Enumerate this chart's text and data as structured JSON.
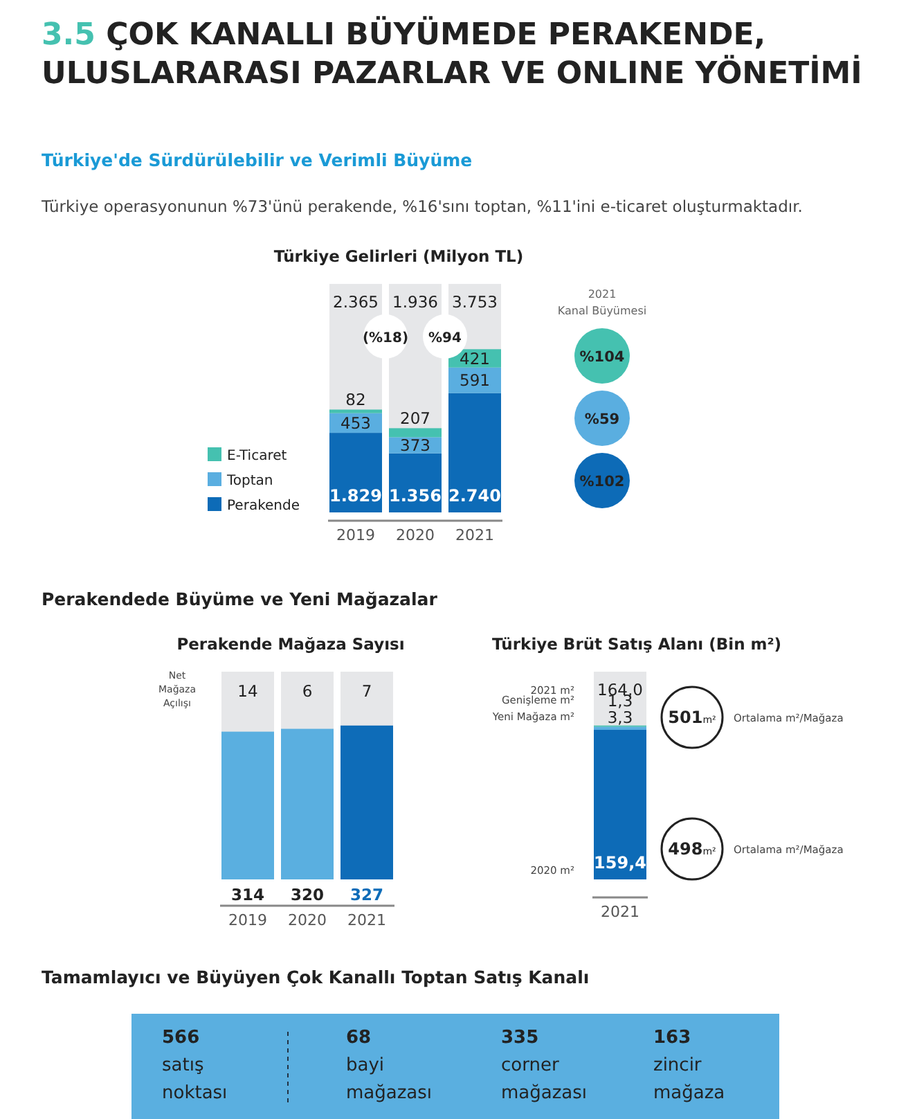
{
  "chart_data": [
    {
      "type": "bar",
      "stacked": true,
      "title": "Türkiye Gelirleri (Milyon TL)",
      "categories": [
        "2019",
        "2020",
        "2021"
      ],
      "series": [
        {
          "name": "Perakende",
          "color": "#0d6bb7",
          "values": [
            1829,
            1356,
            2740
          ],
          "value_labels": [
            "1.829",
            "1.356",
            "2.740"
          ]
        },
        {
          "name": "Toptan",
          "color": "#5aaee0",
          "values": [
            453,
            373,
            591
          ],
          "value_labels": [
            "453",
            "373",
            "591"
          ]
        },
        {
          "name": "E-Ticaret",
          "color": "#45c1b0",
          "values": [
            82,
            207,
            421
          ],
          "value_labels": [
            "82",
            "207",
            "421"
          ]
        }
      ],
      "legend": "left",
      "annotations": [
        "3.5 ÇOK KANALLI BÜYÜMEDE PERAKENDE, ULUSLARARASI PAZARLAR VE ONLINE YÖNETİMİ",
        "Türkiye'de Sürdürülebilir ve Verimli Büyüme",
        "Türkiye operasyonunun %73'ünü perakende, %16'sını toptan, %11'ini e-ticaret oluşturmaktadır.",
        "(%18)",
        "%94",
        "2021 Kanal Büyümesi",
        "%104",
        "%59",
        "%102",
        "2.365",
        "1.936",
        "3.753"
      ]
    },
    {
      "type": "bar",
      "title": "Perakende Mağaza Sayısı",
      "categories": [
        "2019",
        "2020",
        "2021"
      ],
      "values": [
        314,
        320,
        327
      ],
      "colors": [
        "#5aafe0",
        "#5aafe0",
        "#0e6cb8"
      ],
      "data_labels": true,
      "annotations": [
        "Perakendede Büyüme ve Yeni Mağazalar",
        "Net Mağaza Açılışı",
        "14",
        "6",
        "7"
      ]
    },
    {
      "type": "bar",
      "stacked": true,
      "title": "Türkiye Brüt Satış Alanı (Bin m²)",
      "categories": [
        "2021"
      ],
      "series": [
        {
          "name": "2020 m²",
          "color": "#0d6bb7",
          "values": [
            159.4
          ],
          "value_labels": [
            "159,4"
          ]
        },
        {
          "name": "Yeni Mağaza m²",
          "color": "#5aaee0",
          "values": [
            3.3
          ],
          "value_labels": [
            "3,3"
          ]
        },
        {
          "name": "Genişleme m²",
          "color": "#45c1b0",
          "values": [
            1.3
          ],
          "value_labels": [
            "1,3"
          ]
        }
      ],
      "totals": [
        "164,0"
      ],
      "annotations": [
        "2021 m²",
        "501m²",
        "Ortalama m²/Mağaza",
        "498m²",
        "Ortalama m²/Mağaza"
      ]
    },
    {
      "type": "other",
      "title": "Tamamlayıcı ve Büyüyen Çok Kanallı Toptan Satış Kanalı",
      "categories": [
        "satış noktası",
        "bayi mağazası",
        "corner mağazası",
        "zincir mağaza"
      ],
      "values": [
        566,
        68,
        335,
        163
      ],
      "color": "#5aafe0",
      "data_labels": true
    }
  ]
}
